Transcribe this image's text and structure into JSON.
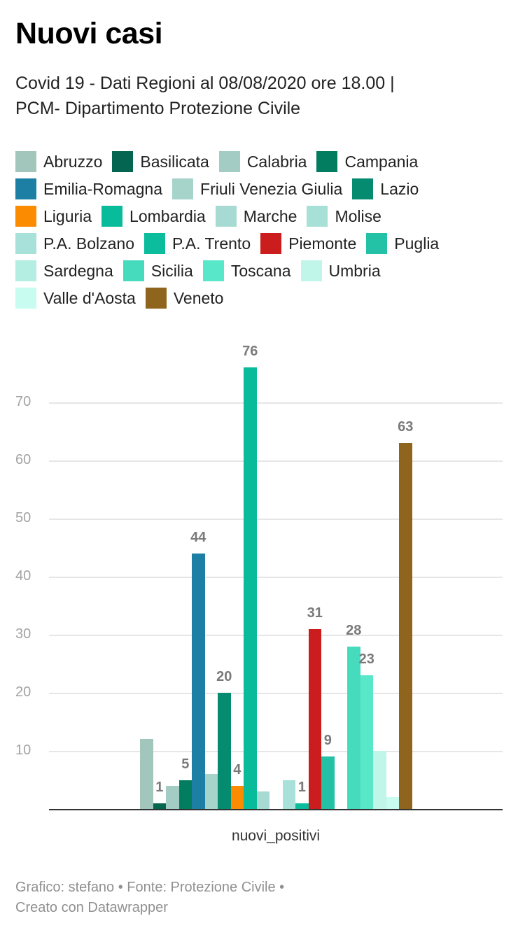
{
  "header": {
    "title": "Nuovi casi",
    "subtitle_line1": "Covid 19 - Dati Regioni al 08/08/2020 ore 18.00 |",
    "subtitle_line2": "PCM- Dipartimento Protezione Civile"
  },
  "legend": [
    {
      "label": "Abruzzo",
      "color": "#a3c6bc"
    },
    {
      "label": "Basilicata",
      "color": "#046550"
    },
    {
      "label": "Calabria",
      "color": "#a3ccc4"
    },
    {
      "label": "Campania",
      "color": "#037d60"
    },
    {
      "label": "Emilia-Romagna",
      "color": "#1d7fa3"
    },
    {
      "label": "Friuli Venezia Giulia",
      "color": "#a6d4cb"
    },
    {
      "label": "Lazio",
      "color": "#058c70"
    },
    {
      "label": "Liguria",
      "color": "#fb8b00"
    },
    {
      "label": "Lombardia",
      "color": "#08bb9b"
    },
    {
      "label": "Marche",
      "color": "#a7dad2"
    },
    {
      "label": "Molise",
      "color": "#a7e0d7"
    },
    {
      "label": "P.A. Bolzano",
      "color": "#a8e1d9"
    },
    {
      "label": "P.A. Trento",
      "color": "#0bbd9c"
    },
    {
      "label": "Piemonte",
      "color": "#cc1d1e"
    },
    {
      "label": "Puglia",
      "color": "#23c2a6"
    },
    {
      "label": "Sardegna",
      "color": "#b4ede2"
    },
    {
      "label": "Sicilia",
      "color": "#47dbbe"
    },
    {
      "label": "Toscana",
      "color": "#58e8c9"
    },
    {
      "label": "Umbria",
      "color": "#c0f5e9"
    },
    {
      "label": "Valle d'Aosta",
      "color": "#c8fcf0"
    },
    {
      "label": "Veneto",
      "color": "#8f641c"
    }
  ],
  "axis": {
    "y_ticks": [
      "70",
      "60",
      "50",
      "40",
      "30",
      "20",
      "10"
    ],
    "x_label": "nuovi_positivi"
  },
  "footer": {
    "line1": "Grafico: stefano • Fonte: Protezione Civile •",
    "line2": "Creato con Datawrapper"
  },
  "chart_data": {
    "type": "bar",
    "title": "Nuovi casi",
    "subtitle": "Covid 19 - Dati Regioni al 08/08/2020 ore 18.00 | PCM- Dipartimento Protezione Civile",
    "categories": [
      "nuovi_positivi"
    ],
    "xlabel": "nuovi_positivi",
    "ylabel": "",
    "ylim": [
      0,
      80
    ],
    "y_ticks": [
      10,
      20,
      30,
      40,
      50,
      60,
      70
    ],
    "grid": true,
    "legend_position": "top",
    "series": [
      {
        "name": "Abruzzo",
        "values": [
          12
        ],
        "label_shown": false
      },
      {
        "name": "Basilicata",
        "values": [
          1
        ],
        "label_shown": true
      },
      {
        "name": "Calabria",
        "values": [
          4
        ],
        "label_shown": false
      },
      {
        "name": "Campania",
        "values": [
          5
        ],
        "label_shown": true
      },
      {
        "name": "Emilia-Romagna",
        "values": [
          44
        ],
        "label_shown": true
      },
      {
        "name": "Friuli Venezia Giulia",
        "values": [
          6
        ],
        "label_shown": false
      },
      {
        "name": "Lazio",
        "values": [
          20
        ],
        "label_shown": true
      },
      {
        "name": "Liguria",
        "values": [
          4
        ],
        "label_shown": true
      },
      {
        "name": "Lombardia",
        "values": [
          76
        ],
        "label_shown": true
      },
      {
        "name": "Marche",
        "values": [
          3
        ],
        "label_shown": false
      },
      {
        "name": "Molise",
        "values": [
          0
        ],
        "label_shown": false
      },
      {
        "name": "P.A. Bolzano",
        "values": [
          5
        ],
        "label_shown": false
      },
      {
        "name": "P.A. Trento",
        "values": [
          1
        ],
        "label_shown": true
      },
      {
        "name": "Piemonte",
        "values": [
          31
        ],
        "label_shown": true
      },
      {
        "name": "Puglia",
        "values": [
          9
        ],
        "label_shown": true
      },
      {
        "name": "Sardegna",
        "values": [
          0
        ],
        "label_shown": false
      },
      {
        "name": "Sicilia",
        "values": [
          28
        ],
        "label_shown": true
      },
      {
        "name": "Toscana",
        "values": [
          23
        ],
        "label_shown": true
      },
      {
        "name": "Umbria",
        "values": [
          10
        ],
        "label_shown": false
      },
      {
        "name": "Valle d'Aosta",
        "values": [
          2
        ],
        "label_shown": false
      },
      {
        "name": "Veneto",
        "values": [
          63
        ],
        "label_shown": true
      }
    ]
  }
}
